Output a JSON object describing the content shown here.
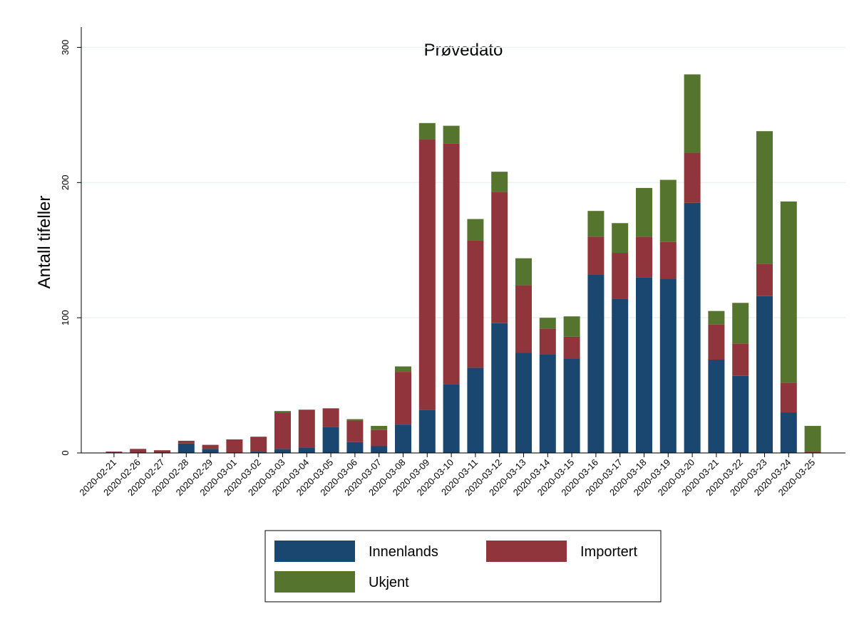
{
  "chart_data": {
    "type": "stacked_bar",
    "title": "Prøvedato",
    "y_label": "Antall tifeller",
    "categories": [
      "2020-02-21",
      "2020-02-26",
      "2020-02-27",
      "2020-02-28",
      "2020-02-29",
      "2020-03-01",
      "2020-03-02",
      "2020-03-03",
      "2020-03-04",
      "2020-03-05",
      "2020-03-06",
      "2020-03-07",
      "2020-03-08",
      "2020-03-09",
      "2020-03-10",
      "2020-03-11",
      "2020-03-12",
      "2020-03-13",
      "2020-03-14",
      "2020-03-15",
      "2020-03-16",
      "2020-03-17",
      "2020-03-18",
      "2020-03-19",
      "2020-03-20",
      "2020-03-21",
      "2020-03-22",
      "2020-03-23",
      "2020-03-24",
      "2020-03-25"
    ],
    "series": [
      {
        "name": "Innenlands",
        "color": "#1a476f",
        "values": [
          0,
          0,
          0,
          7,
          3,
          0,
          1,
          3,
          4,
          19,
          8,
          5,
          21,
          32,
          51,
          63,
          96,
          74,
          73,
          70,
          132,
          114,
          130,
          129,
          185,
          69,
          57,
          116,
          30,
          0
        ]
      },
      {
        "name": "Importert",
        "color": "#90353b",
        "values": [
          1,
          3,
          2,
          2,
          3,
          10,
          11,
          27,
          28,
          14,
          16,
          12,
          39,
          200,
          178,
          94,
          97,
          50,
          19,
          16,
          28,
          34,
          30,
          27,
          37,
          26,
          24,
          24,
          22,
          1
        ]
      },
      {
        "name": "Ukjent",
        "color": "#55752f",
        "values": [
          0,
          0,
          0,
          0,
          0,
          0,
          0,
          1,
          0,
          0,
          1,
          3,
          4,
          12,
          13,
          16,
          15,
          20,
          8,
          15,
          19,
          22,
          36,
          46,
          58,
          10,
          30,
          98,
          134,
          19
        ]
      }
    ],
    "ylim": [
      0,
      315
    ],
    "yticks": [
      0,
      100,
      200,
      300
    ],
    "grid": true
  }
}
